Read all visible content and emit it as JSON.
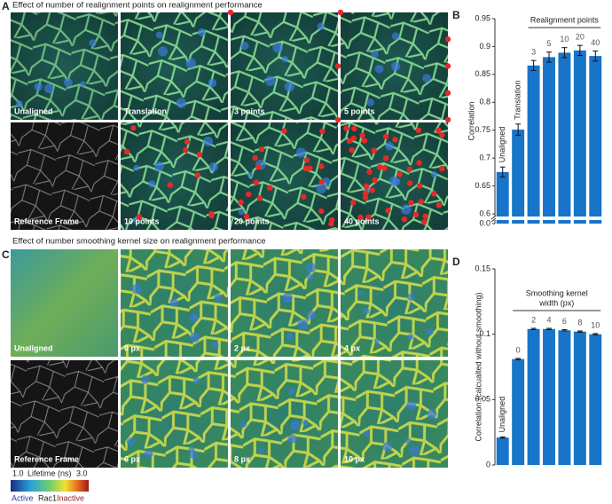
{
  "panel_letters": [
    "A",
    "B",
    "C",
    "D"
  ],
  "panel_a": {
    "title": "Effect of number of realignment points on realignment performance",
    "images": [
      "Unaligned",
      "Translation",
      "3 points",
      "5 points",
      "Reference Frame",
      "10 points",
      "20 points",
      "40 points"
    ]
  },
  "panel_c": {
    "title": "Effect of number smoothing kernel size on realignment performance",
    "images": [
      "Unaligned",
      "0 px",
      "2 px",
      "4 px",
      "Reference Frame",
      "6 px",
      "8 px",
      "10 px"
    ]
  },
  "colorbar": {
    "min_label": "1.0",
    "title": "Lifetime (ns)",
    "max_label": "3.0",
    "active": "Active",
    "protein": "Rac1",
    "inactive": "Inactive"
  },
  "chart_data": [
    {
      "type": "bar",
      "y_label": "Correlation",
      "annotation": [
        "Realignment points"
      ],
      "categories": [
        "Unaligned",
        "Translation",
        "3",
        "5",
        "10",
        "20",
        "40"
      ],
      "values": [
        0.675,
        0.751,
        0.866,
        0.881,
        0.889,
        0.893,
        0.883
      ],
      "errors": [
        0.009,
        0.01,
        0.009,
        0.009,
        0.009,
        0.009,
        0.009
      ],
      "color": "#1874c8",
      "ylim": [
        0.6,
        0.95
      ],
      "axis_break": true,
      "yticks": [
        {
          "value": 0,
          "label": "0.0"
        },
        0.6,
        0.65,
        0.7,
        0.75,
        0.8,
        0.85,
        0.9,
        0.95
      ]
    },
    {
      "type": "bar",
      "y_label": "Correlation (calcualted without smoothing)",
      "annotation": [
        "Smoothing kernel",
        "width (px)"
      ],
      "categories": [
        "Unaligned",
        "0",
        "2",
        "4",
        "6",
        "8",
        "10"
      ],
      "values": [
        0.021,
        0.081,
        0.104,
        0.104,
        0.103,
        0.102,
        0.1
      ],
      "errors": [
        0.0005,
        0.0005,
        0.0005,
        0.0005,
        0.0005,
        0.0005,
        0.0005
      ],
      "color": "#1874c8",
      "ylim": [
        0,
        0.15
      ],
      "axis_break": false,
      "yticks": [
        0,
        0.05,
        0.1,
        0.15
      ]
    }
  ]
}
